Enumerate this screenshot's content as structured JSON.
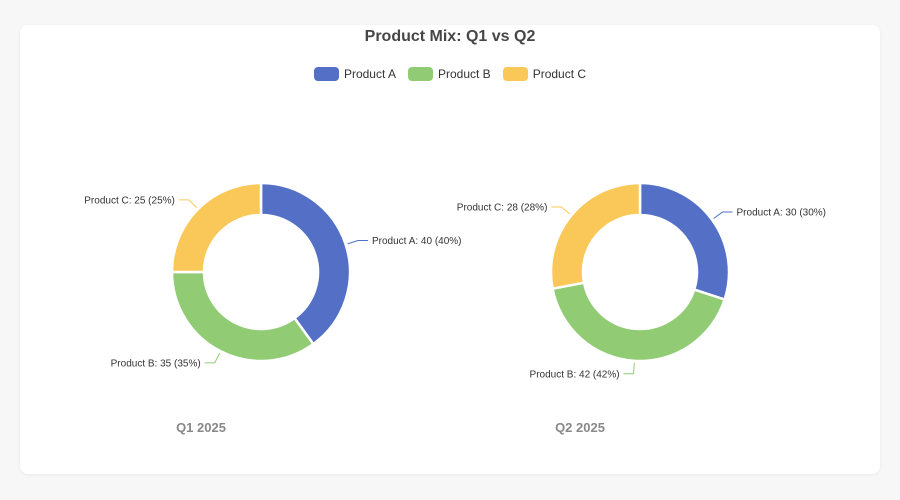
{
  "chart_data": {
    "type": "donut",
    "title": "Product Mix: Q1 vs Q2",
    "legend_position": "top",
    "series": [
      {
        "name": "Product A",
        "color": "#5470c6"
      },
      {
        "name": "Product B",
        "color": "#91cc75"
      },
      {
        "name": "Product C",
        "color": "#fac858"
      }
    ],
    "charts": [
      {
        "name": "Q1 2025",
        "slices": [
          {
            "name": "Product A",
            "value": 40,
            "label": "Product A: 40 (40%)"
          },
          {
            "name": "Product B",
            "value": 35,
            "label": "Product B: 35 (35%)"
          },
          {
            "name": "Product C",
            "value": 25,
            "label": "Product C: 25 (25%)"
          }
        ]
      },
      {
        "name": "Q2 2025",
        "slices": [
          {
            "name": "Product A",
            "value": 30,
            "label": "Product A: 30 (30%)"
          },
          {
            "name": "Product B",
            "value": 42,
            "label": "Product B: 42 (42%)"
          },
          {
            "name": "Product C",
            "value": 28,
            "label": "Product C: 28 (28%)"
          }
        ]
      }
    ]
  }
}
